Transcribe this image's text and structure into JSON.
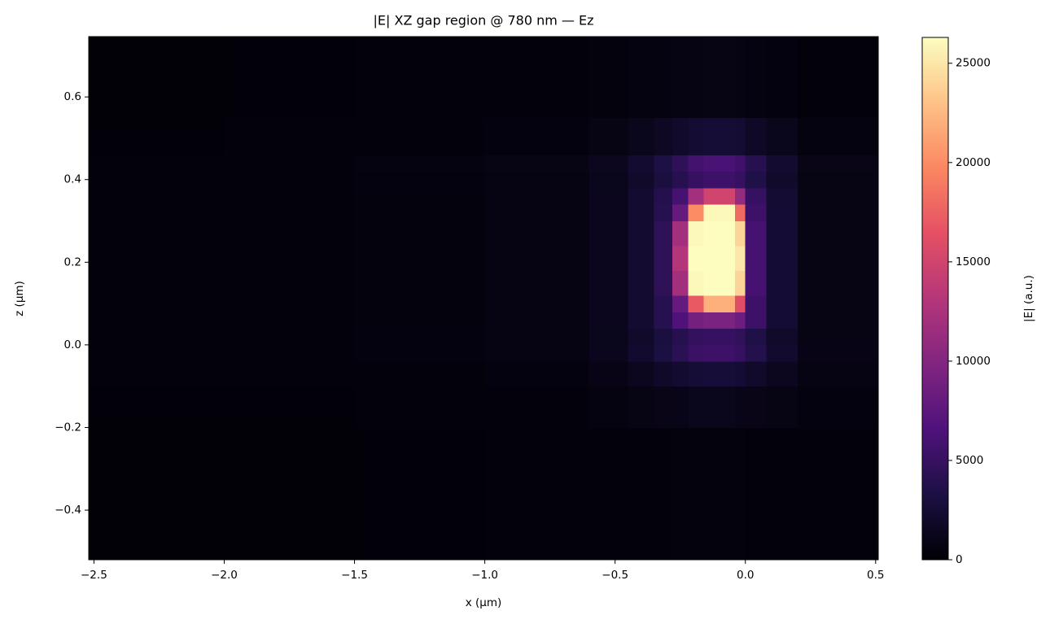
{
  "chart_data": {
    "type": "heatmap",
    "title": "|E| XZ gap region @ 780 nm — Ez",
    "x_label": "x (µm)",
    "y_label": "z (µm)",
    "colorbar_label": "|E| (a.u.)",
    "colormap": "magma",
    "xlim": [
      -2.52,
      0.51
    ],
    "ylim": [
      -0.52,
      0.746
    ],
    "xticks": [
      {
        "value": -2.5,
        "label": "−2.5"
      },
      {
        "value": -2.0,
        "label": "−2.0"
      },
      {
        "value": -1.5,
        "label": "−1.5"
      },
      {
        "value": -1.0,
        "label": "−1.0"
      },
      {
        "value": -0.5,
        "label": "−0.5"
      },
      {
        "value": 0,
        "label": "0.0"
      },
      0.5
    ],
    "yticks": [
      {
        "value": -0.4,
        "label": "−0.4"
      },
      {
        "value": -0.2,
        "label": "−0.2"
      },
      {
        "value": 0,
        "label": "0.0"
      },
      0.2,
      0.4,
      0.6
    ],
    "clim": [
      0,
      26300
    ],
    "colorbar_ticks": [
      0,
      5000,
      10000,
      15000,
      20000,
      25000
    ],
    "x_bins": [
      -2.52,
      -2.0,
      -1.5,
      -1.0,
      -0.6,
      -0.45,
      -0.35,
      -0.28,
      -0.22,
      -0.16,
      -0.1,
      -0.04,
      0.0,
      0.08,
      0.2,
      0.51
    ],
    "y_bins": [
      -0.52,
      -0.2,
      -0.1,
      -0.04,
      0.0,
      0.04,
      0.08,
      0.12,
      0.18,
      0.24,
      0.3,
      0.34,
      0.38,
      0.42,
      0.46,
      0.55,
      0.746
    ],
    "values": [
      [
        200,
        200,
        250,
        300,
        350,
        400,
        400,
        450,
        450,
        450,
        450,
        450,
        400,
        350,
        300
      ],
      [
        250,
        250,
        300,
        400,
        600,
        800,
        1000,
        1100,
        1200,
        1200,
        1200,
        1100,
        1000,
        800,
        500
      ],
      [
        300,
        300,
        350,
        500,
        900,
        1400,
        1900,
        2300,
        2600,
        2700,
        2700,
        2500,
        2000,
        1400,
        700
      ],
      [
        300,
        400,
        500,
        700,
        1300,
        2200,
        3200,
        4200,
        5200,
        5500,
        5500,
        5000,
        3800,
        2200,
        900
      ],
      [
        300,
        400,
        500,
        700,
        1200,
        2000,
        3000,
        4000,
        4800,
        5000,
        5000,
        4600,
        3500,
        2000,
        800
      ],
      [
        300,
        350,
        450,
        700,
        1300,
        2300,
        4000,
        6500,
        9000,
        9500,
        9500,
        8500,
        5500,
        2500,
        800
      ],
      [
        300,
        350,
        450,
        700,
        1300,
        2300,
        4000,
        8000,
        17000,
        22000,
        22000,
        16000,
        5500,
        2500,
        800
      ],
      [
        300,
        350,
        450,
        700,
        1300,
        2300,
        4500,
        12000,
        26000,
        26300,
        26300,
        24000,
        6000,
        2500,
        800
      ],
      [
        300,
        350,
        450,
        700,
        1300,
        2300,
        4500,
        13000,
        26300,
        26300,
        26300,
        25000,
        6000,
        2500,
        800
      ],
      [
        300,
        350,
        450,
        700,
        1300,
        2300,
        4500,
        12000,
        26000,
        26300,
        26300,
        24000,
        6000,
        2500,
        800
      ],
      [
        300,
        350,
        450,
        700,
        1300,
        2300,
        4000,
        8000,
        20000,
        26000,
        26000,
        18000,
        5500,
        2500,
        800
      ],
      [
        300,
        350,
        450,
        700,
        1300,
        2300,
        3800,
        6000,
        12000,
        15000,
        15000,
        11000,
        5000,
        2400,
        800
      ],
      [
        300,
        400,
        500,
        700,
        1200,
        2000,
        3000,
        4000,
        5000,
        5500,
        5500,
        5000,
        3500,
        2000,
        800
      ],
      [
        300,
        400,
        600,
        800,
        1400,
        2300,
        3300,
        4500,
        5800,
        6200,
        6200,
        5600,
        4000,
        2300,
        1000
      ],
      [
        250,
        300,
        400,
        500,
        800,
        1200,
        1600,
        2000,
        2400,
        2600,
        2600,
        2400,
        1800,
        1200,
        600
      ],
      [
        200,
        250,
        300,
        350,
        450,
        550,
        650,
        700,
        750,
        800,
        800,
        750,
        650,
        500,
        350
      ]
    ]
  }
}
